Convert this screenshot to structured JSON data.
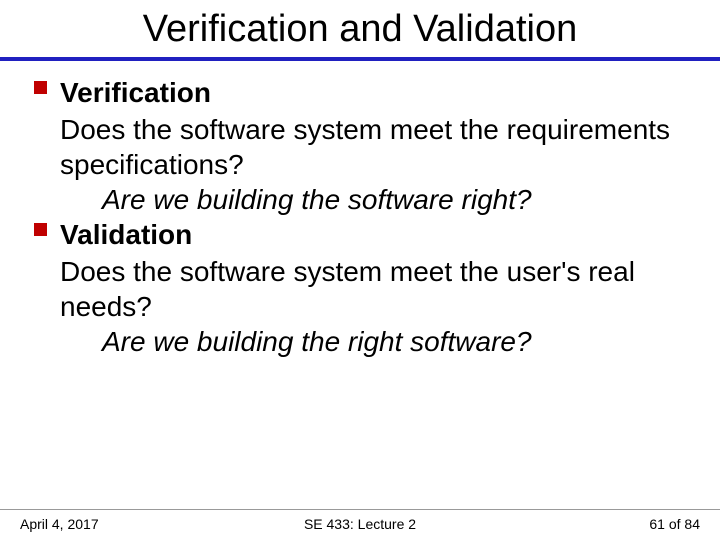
{
  "title": "Verification and Validation",
  "colors": {
    "title_rule": "#2020c0",
    "bullet": "#c00000",
    "text": "#000000",
    "background": "#ffffff",
    "footer_rule": "#999999"
  },
  "typography": {
    "title_fontsize": 38,
    "body_fontsize": 28,
    "footer_fontsize": 14,
    "font_family": "Arial"
  },
  "items": [
    {
      "heading": "Verification",
      "body": "Does the software system meet the requirements specifications?",
      "question": "Are we building the software right?"
    },
    {
      "heading": "Validation",
      "body": "Does the software system meet the user's real needs?",
      "question": "Are we building the right software?"
    }
  ],
  "footer": {
    "date": "April 4, 2017",
    "center": "SE 433: Lecture 2",
    "page_current": 61,
    "page_total": 84,
    "page_label": "61 of 84"
  }
}
